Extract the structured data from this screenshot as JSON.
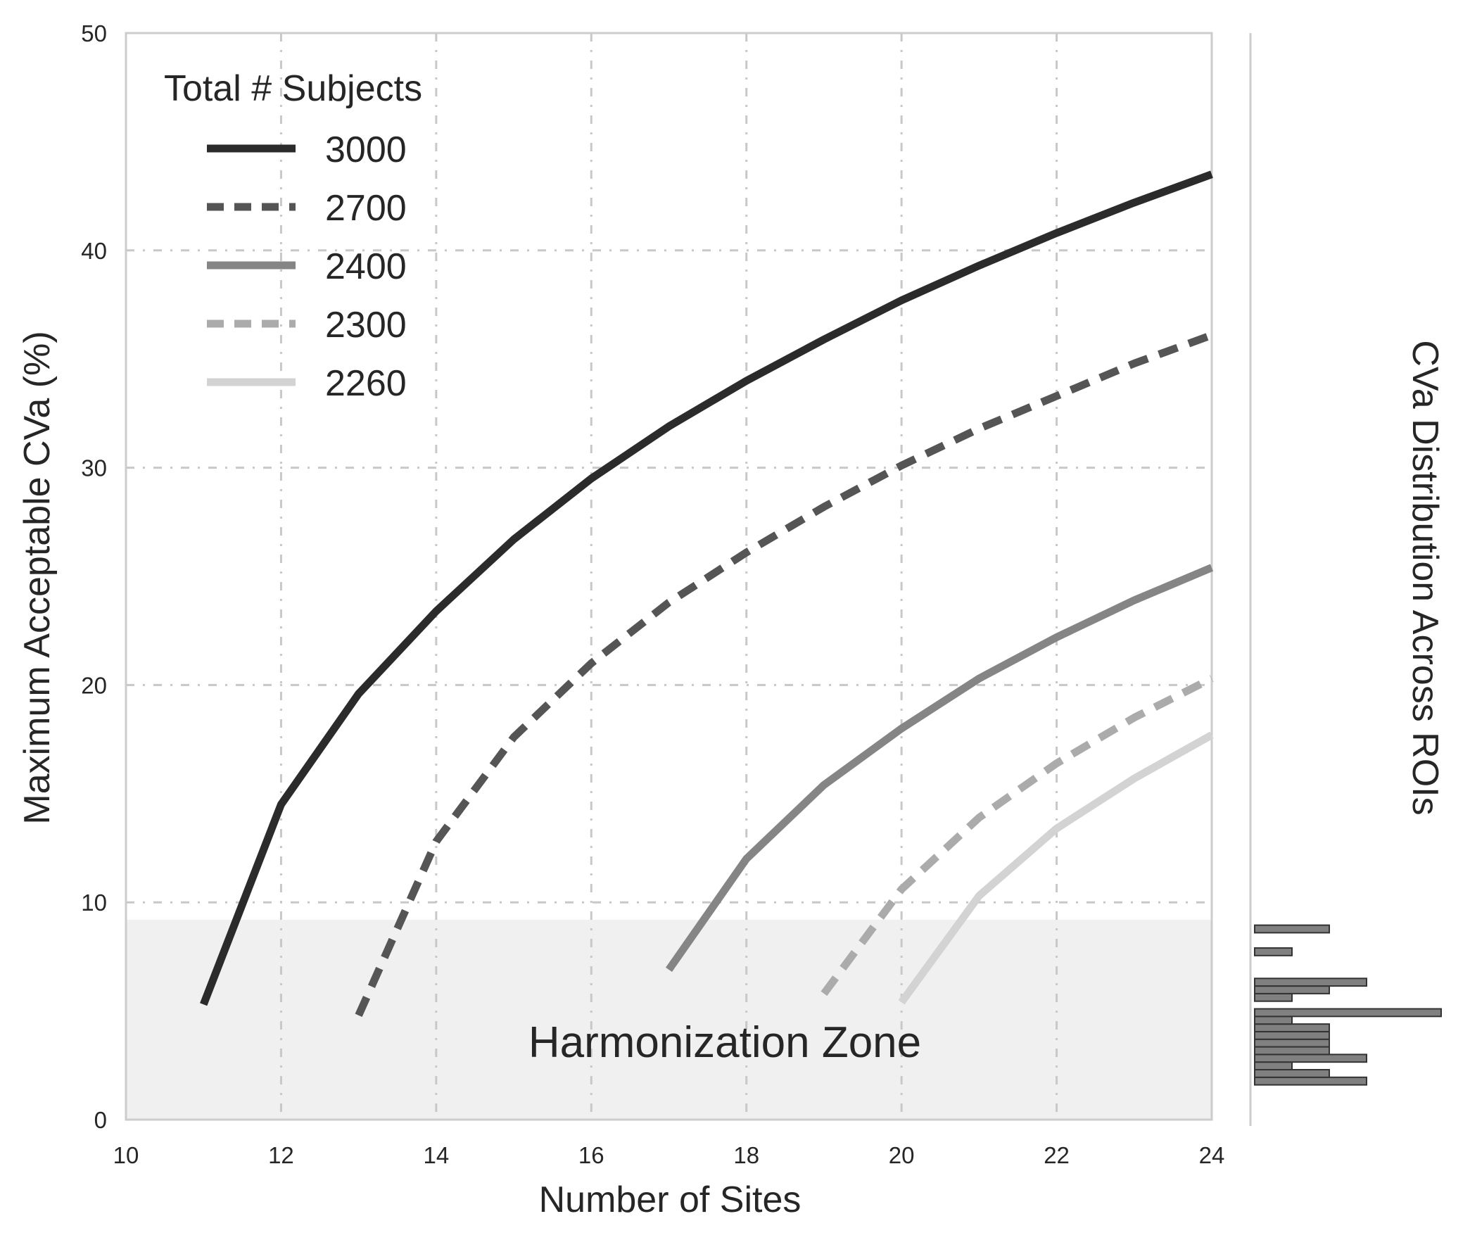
{
  "chart_data": {
    "type": "line",
    "xlabel": "Number of Sites",
    "ylabel": "Maximum Acceptable CVa (%)",
    "xlim": [
      10,
      24
    ],
    "ylim": [
      0,
      50
    ],
    "x_ticks": [
      "10",
      "12",
      "14",
      "16",
      "18",
      "20",
      "22",
      "24"
    ],
    "y_ticks": [
      "0",
      "10",
      "20",
      "30",
      "40",
      "50"
    ],
    "grid": true,
    "legend": {
      "title": "Total # Subjects",
      "placement": "top-left"
    },
    "series": [
      {
        "name": "3000",
        "color": "#2b2b2b",
        "dash": "solid",
        "x": [
          11,
          12,
          13,
          14,
          15,
          16,
          17,
          18,
          19,
          20,
          21,
          22,
          23,
          24
        ],
        "y": [
          5.3,
          14.5,
          19.6,
          23.4,
          26.7,
          29.5,
          31.9,
          34.0,
          35.9,
          37.7,
          39.3,
          40.8,
          42.2,
          43.5
        ]
      },
      {
        "name": "2700",
        "color": "#555555",
        "dash": "dashed",
        "x": [
          13,
          14,
          15,
          16,
          17,
          18,
          19,
          20,
          21,
          22,
          23,
          24
        ],
        "y": [
          4.8,
          12.8,
          17.6,
          21.0,
          23.8,
          26.1,
          28.2,
          30.1,
          31.8,
          33.3,
          34.8,
          36.1
        ]
      },
      {
        "name": "2400",
        "color": "#858585",
        "dash": "solid",
        "x": [
          17,
          18,
          19,
          20,
          21,
          22,
          23,
          24
        ],
        "y": [
          6.9,
          12.0,
          15.4,
          18.0,
          20.3,
          22.2,
          23.9,
          25.4
        ]
      },
      {
        "name": "2300",
        "color": "#ababab",
        "dash": "dashed",
        "x": [
          19,
          20,
          21,
          22,
          23,
          24
        ],
        "y": [
          5.8,
          10.6,
          13.9,
          16.4,
          18.5,
          20.3
        ]
      },
      {
        "name": "2260",
        "color": "#d3d3d3",
        "dash": "solid",
        "x": [
          20,
          21,
          22,
          23,
          24
        ],
        "y": [
          5.4,
          10.3,
          13.4,
          15.7,
          17.7
        ]
      }
    ],
    "harmonization_zone": {
      "label": "Harmonization Zone",
      "y_range": [
        0,
        9.2
      ],
      "color": "#f0f0f0"
    },
    "side_histogram": {
      "title": "CVa Distribution Across ROIs",
      "bin_width": 0.35,
      "bins": [
        {
          "start": 1.6,
          "count": 3
        },
        {
          "start": 1.95,
          "count": 2
        },
        {
          "start": 2.3,
          "count": 1
        },
        {
          "start": 2.65,
          "count": 3
        },
        {
          "start": 3.0,
          "count": 2
        },
        {
          "start": 3.35,
          "count": 2
        },
        {
          "start": 3.7,
          "count": 2
        },
        {
          "start": 4.05,
          "count": 2
        },
        {
          "start": 4.4,
          "count": 1
        },
        {
          "start": 4.75,
          "count": 5
        },
        {
          "start": 5.45,
          "count": 1
        },
        {
          "start": 5.8,
          "count": 2
        },
        {
          "start": 6.15,
          "count": 3
        },
        {
          "start": 7.55,
          "count": 1
        },
        {
          "start": 8.6,
          "count": 2
        }
      ]
    }
  }
}
